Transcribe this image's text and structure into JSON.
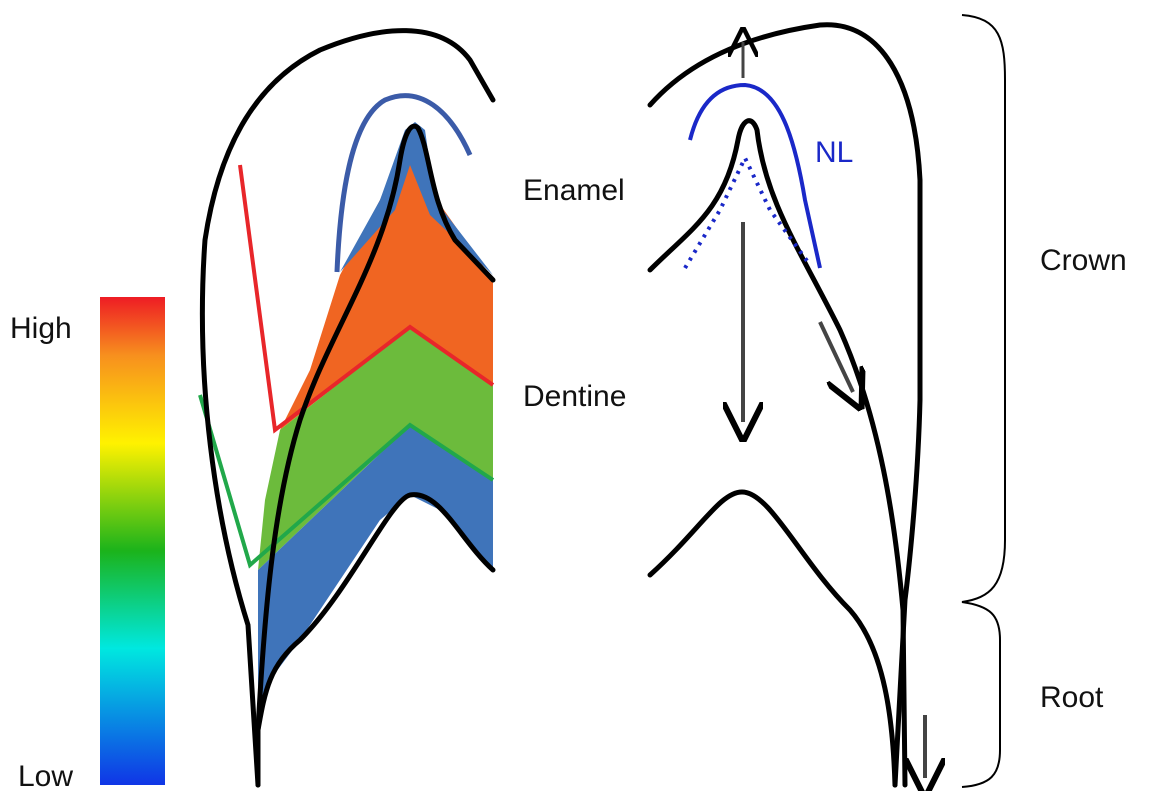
{
  "colorbar": {
    "high": "High",
    "low": "Low"
  },
  "labels": {
    "enamel": "Enamel",
    "dentine": "Dentine",
    "nl": "NL",
    "crown": "Crown",
    "root": "Root"
  }
}
